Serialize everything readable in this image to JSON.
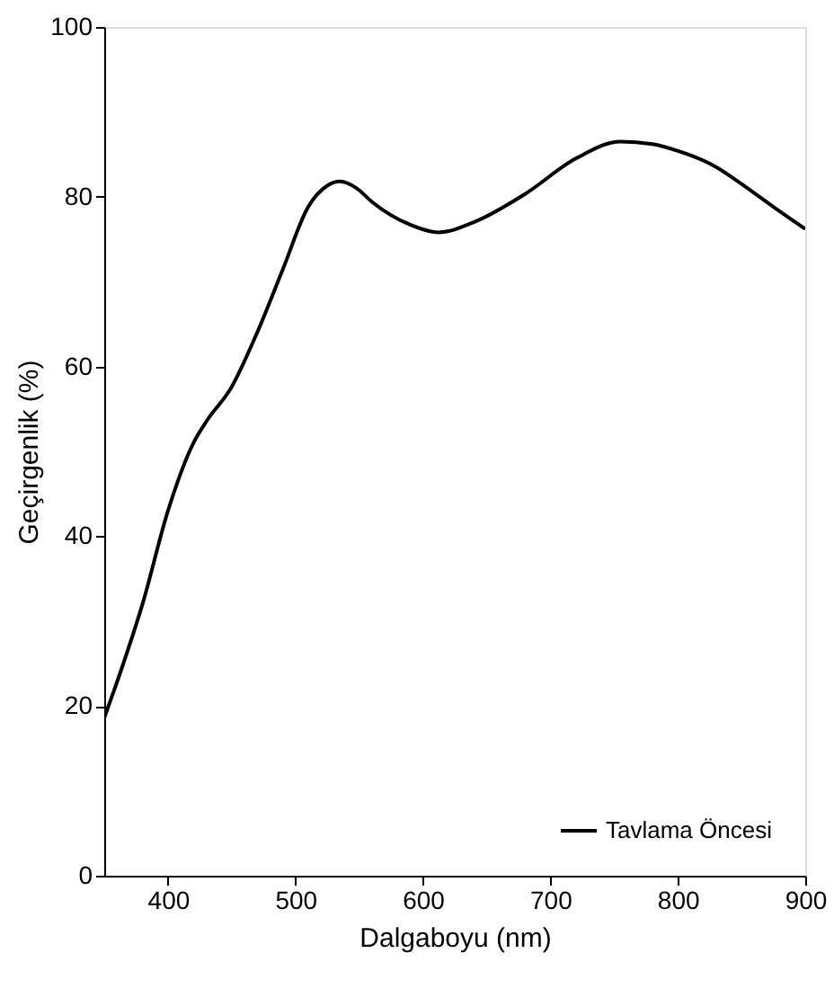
{
  "chart_data": {
    "type": "line",
    "xlabel": "Dalgaboyu (nm)",
    "ylabel": "Geçirgenlik (%)",
    "xlim": [
      350,
      900
    ],
    "xticks": [
      400,
      500,
      600,
      700,
      800,
      900
    ],
    "ylim": [
      0,
      100
    ],
    "yticks": [
      0,
      20,
      40,
      60,
      80,
      100
    ],
    "grid": false,
    "legend": "bottom right",
    "marker": "none",
    "line_style": "solid",
    "series": [
      {
        "name": "Tavlama Öncesi",
        "color": "#000000",
        "x": [
          350,
          365,
          380,
          400,
          420,
          430,
          450,
          470,
          490,
          510,
          525,
          535,
          548,
          560,
          590,
          612,
          640,
          680,
          720,
          755,
          780,
          800,
          830,
          850,
          875,
          900
        ],
        "values": [
          18.6,
          25,
          32,
          43,
          51,
          53.5,
          57.6,
          64,
          71.4,
          78.8,
          81.3,
          81.8,
          81,
          79.4,
          76.7,
          75.8,
          77,
          80.3,
          84.5,
          86.5,
          86.2,
          85.4,
          83.5,
          81.5,
          78.8,
          76.2
        ]
      }
    ]
  }
}
